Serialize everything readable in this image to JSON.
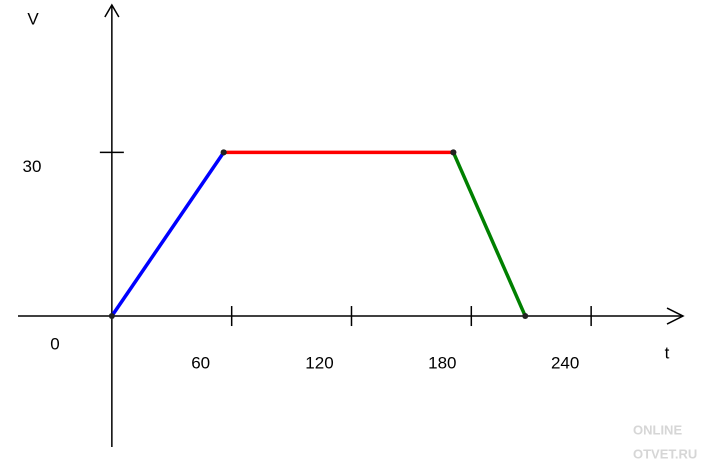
{
  "chart_data": {
    "type": "line",
    "y_label": "V",
    "x_label": "t",
    "origin_label": "0",
    "series": [
      {
        "color": "#0000ff",
        "x": [
          0,
          56
        ],
        "values": [
          0,
          30
        ]
      },
      {
        "color": "#ff0000",
        "x": [
          56,
          171
        ],
        "values": [
          30,
          30
        ]
      },
      {
        "color": "#008000",
        "x": [
          171,
          207
        ],
        "values": [
          30,
          0
        ]
      }
    ],
    "xlim": [
      -47,
      286
    ],
    "ylim": [
      -24,
      57
    ],
    "xticks": [
      60,
      120,
      180,
      240
    ],
    "yticks": [
      30
    ],
    "grid": false,
    "watermark": [
      "ONLINE",
      "OTVET.RU"
    ]
  }
}
